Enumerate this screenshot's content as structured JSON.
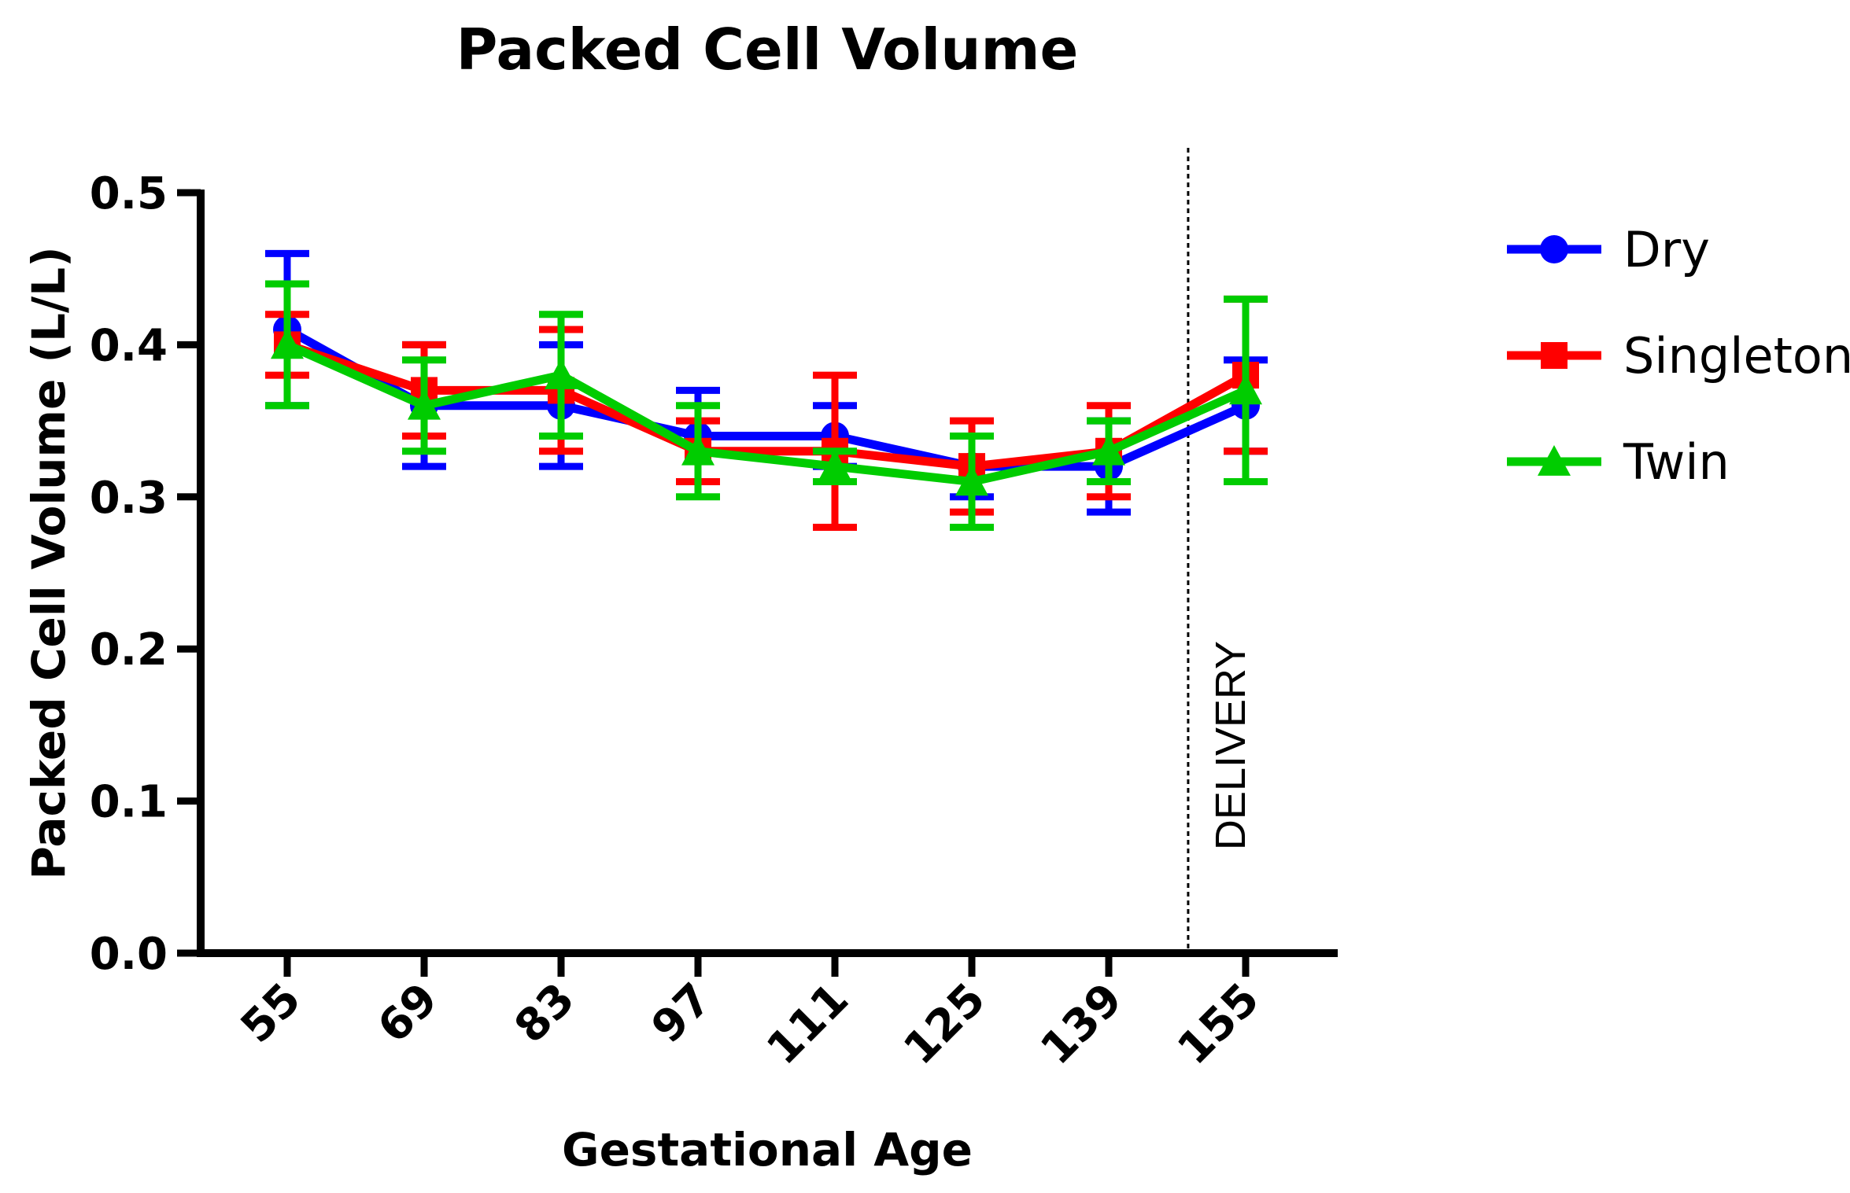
{
  "chart_data": {
    "type": "line",
    "title": "Packed Cell Volume",
    "xlabel": "Gestational Age",
    "ylabel": "Packed Cell Volume (L/L)",
    "categories": [
      "55",
      "69",
      "83",
      "97",
      "111",
      "125",
      "139",
      "155"
    ],
    "ylim": [
      0,
      0.5
    ],
    "yticks": [
      "0.0",
      "0.1",
      "0.2",
      "0.3",
      "0.4",
      "0.5"
    ],
    "legend_position": "right",
    "series": [
      {
        "name": "Dry",
        "color": "#0000ff",
        "marker": "circle",
        "values": [
          0.41,
          0.36,
          0.36,
          0.34,
          0.34,
          0.32,
          0.32,
          0.36
        ],
        "errors": [
          0.05,
          0.04,
          0.04,
          0.03,
          0.02,
          0.02,
          0.03,
          0.03
        ]
      },
      {
        "name": "Singleton",
        "color": "#ff0000",
        "marker": "square",
        "values": [
          0.4,
          0.37,
          0.37,
          0.33,
          0.33,
          0.32,
          0.33,
          0.38
        ],
        "errors": [
          0.02,
          0.03,
          0.04,
          0.02,
          0.05,
          0.03,
          0.03,
          0.05
        ]
      },
      {
        "name": "Twin",
        "color": "#00cc00",
        "marker": "triangle",
        "values": [
          0.4,
          0.36,
          0.38,
          0.33,
          0.32,
          0.31,
          0.33,
          0.37
        ],
        "errors": [
          0.04,
          0.03,
          0.04,
          0.03,
          0.01,
          0.03,
          0.02,
          0.06
        ]
      }
    ],
    "annotation": {
      "label": "DELIVERY",
      "style": "dotted vertical line",
      "between": [
        "139",
        "155"
      ]
    }
  }
}
